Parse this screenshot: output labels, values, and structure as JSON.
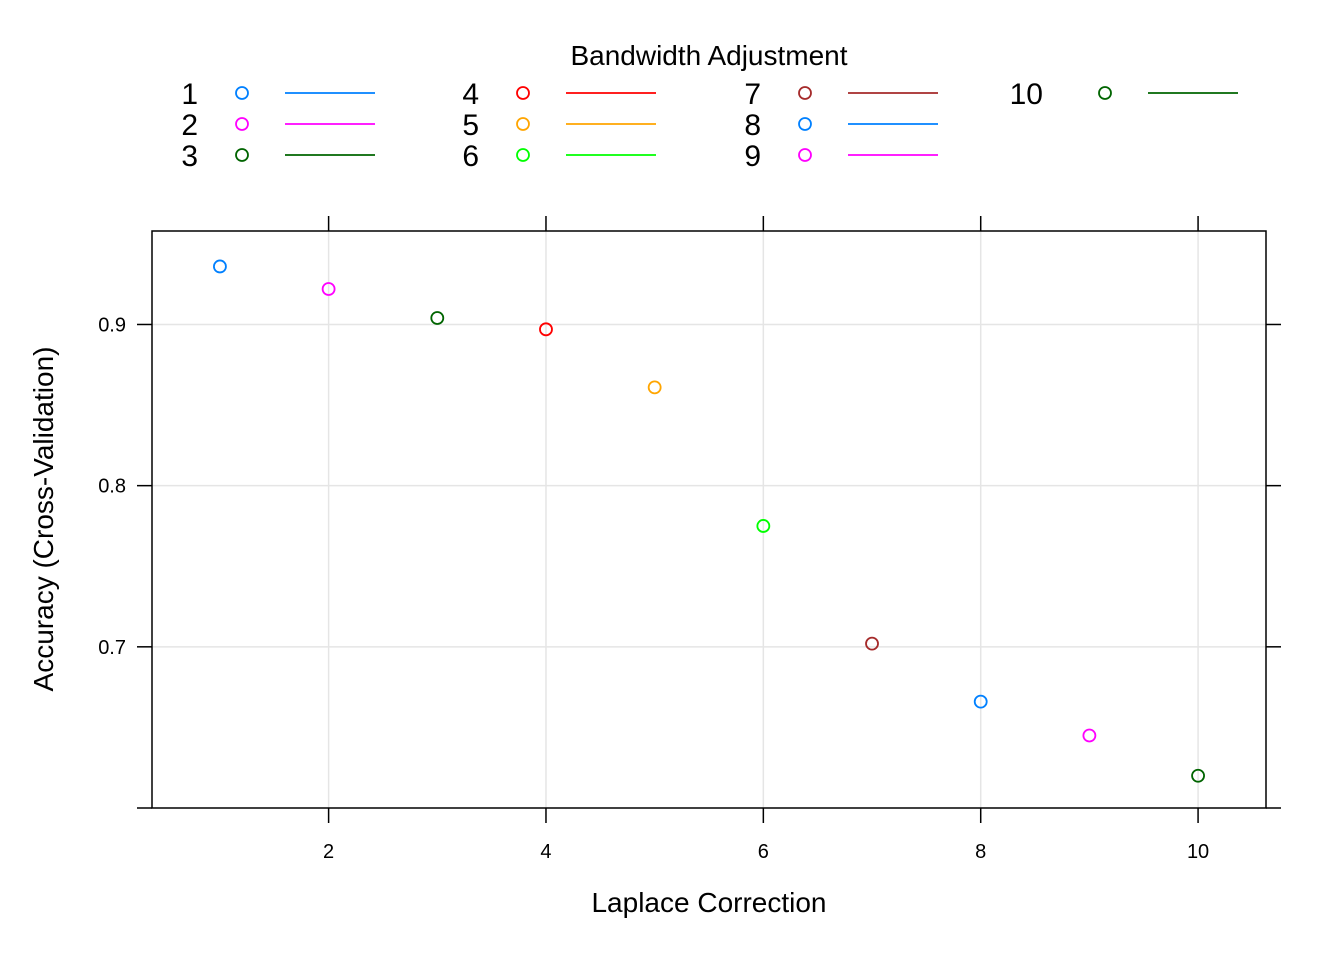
{
  "chart_data": {
    "type": "scatter",
    "title": "",
    "xlabel": "Laplace Correction",
    "ylabel": "Accuracy (Cross-Validation)",
    "xlim": [
      0.375,
      10.625
    ],
    "ylim": [
      0.6,
      0.958
    ],
    "xticks": [
      2,
      4,
      6,
      8,
      10
    ],
    "yticks": [
      0.7,
      0.8,
      0.9
    ],
    "xtick_labels": [
      "2",
      "4",
      "6",
      "8",
      "10"
    ],
    "ytick_labels": [
      "0.7",
      "0.8",
      "0.9"
    ],
    "grid": true,
    "legend": {
      "title": "Bandwidth Adjustment",
      "position": "top",
      "columns": 4,
      "entries": [
        {
          "label": "1",
          "color": "#0080ff"
        },
        {
          "label": "2",
          "color": "#ff00ff"
        },
        {
          "label": "3",
          "color": "#006400"
        },
        {
          "label": "4",
          "color": "#ff0000"
        },
        {
          "label": "5",
          "color": "#ffa500"
        },
        {
          "label": "6",
          "color": "#00ff00"
        },
        {
          "label": "7",
          "color": "#a52a2a"
        },
        {
          "label": "8",
          "color": "#0080ff"
        },
        {
          "label": "9",
          "color": "#ff00ff"
        },
        {
          "label": "10",
          "color": "#006400"
        }
      ]
    },
    "points": [
      {
        "x": 1,
        "y": 0.936,
        "series": "1",
        "color": "#0080ff"
      },
      {
        "x": 2,
        "y": 0.922,
        "series": "2",
        "color": "#ff00ff"
      },
      {
        "x": 3,
        "y": 0.904,
        "series": "3",
        "color": "#006400"
      },
      {
        "x": 4,
        "y": 0.897,
        "series": "4",
        "color": "#ff0000"
      },
      {
        "x": 5,
        "y": 0.861,
        "series": "5",
        "color": "#ffa500"
      },
      {
        "x": 6,
        "y": 0.775,
        "series": "6",
        "color": "#00ff00"
      },
      {
        "x": 7,
        "y": 0.702,
        "series": "7",
        "color": "#a52a2a"
      },
      {
        "x": 8,
        "y": 0.666,
        "series": "8",
        "color": "#0080ff"
      },
      {
        "x": 9,
        "y": 0.645,
        "series": "9",
        "color": "#ff00ff"
      },
      {
        "x": 10,
        "y": 0.62,
        "series": "10",
        "color": "#006400"
      }
    ]
  }
}
